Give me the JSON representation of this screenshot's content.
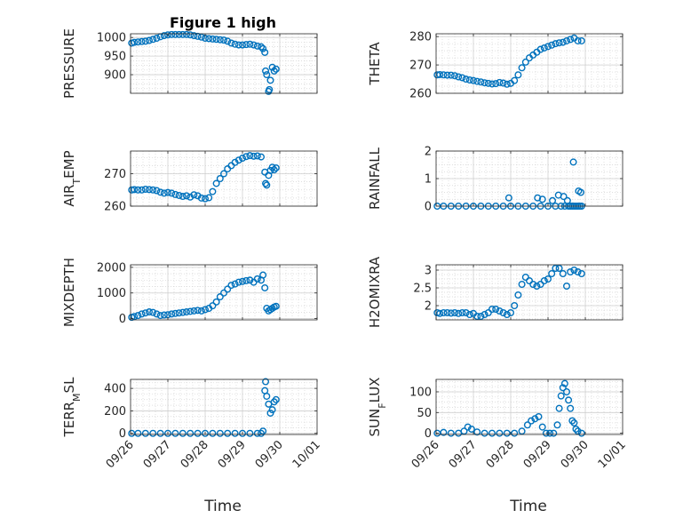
{
  "figure": {
    "title": "Figure 1 high",
    "x_ticks": [
      "09/26",
      "09/27",
      "09/28",
      "09/29",
      "09/30",
      "10/01"
    ],
    "xlabel": "Time",
    "marker_color": "#0072BD"
  },
  "chart_data": [
    {
      "type": "scatter",
      "ylabel": "PRESSURE",
      "ylim": [
        850,
        1010
      ],
      "yticks": [
        900,
        950,
        1000
      ],
      "xlim": [
        0,
        5
      ],
      "grid": true,
      "x": [
        0.03,
        0.1,
        0.2,
        0.3,
        0.4,
        0.5,
        0.6,
        0.7,
        0.8,
        0.9,
        1.0,
        1.1,
        1.2,
        1.3,
        1.4,
        1.5,
        1.6,
        1.7,
        1.8,
        1.9,
        2.0,
        2.1,
        2.2,
        2.3,
        2.4,
        2.5,
        2.6,
        2.7,
        2.8,
        2.9,
        3.0,
        3.1,
        3.2,
        3.3,
        3.4,
        3.5,
        3.55,
        3.6,
        3.62,
        3.65,
        3.7,
        3.72,
        3.75,
        3.8,
        3.85,
        3.9
      ],
      "y": [
        985,
        987,
        988,
        989,
        990,
        992,
        995,
        998,
        1002,
        1005,
        1007,
        1008,
        1008,
        1008,
        1008,
        1008,
        1007,
        1005,
        1003,
        1001,
        998,
        997,
        996,
        995,
        994,
        993,
        990,
        985,
        982,
        980,
        980,
        981,
        982,
        980,
        977,
        975,
        970,
        960,
        910,
        900,
        855,
        860,
        885,
        920,
        910,
        915
      ]
    },
    {
      "type": "scatter",
      "ylabel": "THETA",
      "ylim": [
        260,
        281
      ],
      "yticks": [
        260,
        270,
        280
      ],
      "xlim": [
        0,
        5
      ],
      "grid": true,
      "x": [
        0.03,
        0.1,
        0.2,
        0.3,
        0.4,
        0.5,
        0.6,
        0.7,
        0.8,
        0.9,
        1.0,
        1.1,
        1.2,
        1.3,
        1.4,
        1.5,
        1.6,
        1.7,
        1.8,
        1.9,
        2.0,
        2.1,
        2.2,
        2.3,
        2.4,
        2.5,
        2.6,
        2.7,
        2.8,
        2.9,
        3.0,
        3.1,
        3.2,
        3.3,
        3.4,
        3.5,
        3.6,
        3.7,
        3.8,
        3.9
      ],
      "y": [
        266.5,
        266.6,
        266.5,
        266.4,
        266.4,
        266.2,
        265.8,
        265.5,
        265,
        264.7,
        264.5,
        264.2,
        264,
        263.7,
        263.5,
        263.3,
        263.4,
        263.8,
        263.6,
        263.2,
        263.5,
        264.5,
        266.5,
        269,
        271,
        272.5,
        273.5,
        274.5,
        275.5,
        276,
        276.5,
        277,
        277.5,
        277.8,
        278,
        278.5,
        279,
        279.5,
        278.5,
        278.5
      ]
    },
    {
      "type": "scatter",
      "ylabel": "AIR_TEMP",
      "ylim": [
        260,
        277
      ],
      "yticks": [
        260,
        270
      ],
      "xlim": [
        0,
        5
      ],
      "grid": true,
      "x": [
        0.03,
        0.1,
        0.2,
        0.3,
        0.4,
        0.5,
        0.6,
        0.7,
        0.8,
        0.9,
        1.0,
        1.1,
        1.2,
        1.3,
        1.4,
        1.5,
        1.6,
        1.7,
        1.8,
        1.9,
        2.0,
        2.1,
        2.2,
        2.3,
        2.4,
        2.5,
        2.6,
        2.7,
        2.8,
        2.9,
        3.0,
        3.1,
        3.2,
        3.3,
        3.4,
        3.5,
        3.6,
        3.62,
        3.65,
        3.7,
        3.75,
        3.8,
        3.85,
        3.9
      ],
      "y": [
        265,
        265.1,
        265,
        265,
        265.2,
        265.1,
        265,
        264.8,
        264.3,
        264,
        264.2,
        264,
        263.6,
        263.3,
        263,
        263.2,
        262.8,
        263.5,
        263.2,
        262.5,
        262.3,
        262.6,
        264.5,
        267,
        268.5,
        270,
        271.5,
        272.5,
        273.5,
        274.2,
        274.8,
        275.3,
        275.6,
        275.4,
        275.5,
        275.2,
        270.5,
        267,
        266.5,
        269.5,
        271,
        272,
        271.2,
        271.8
      ]
    },
    {
      "type": "scatter",
      "ylabel": "RAINFALL",
      "ylim": [
        0,
        2
      ],
      "yticks": [
        0,
        1,
        2
      ],
      "xlim": [
        0,
        5
      ],
      "grid": true,
      "x": [
        0.03,
        0.2,
        0.4,
        0.6,
        0.8,
        1.0,
        1.2,
        1.4,
        1.6,
        1.8,
        2.0,
        2.2,
        2.4,
        2.6,
        2.8,
        3.0,
        3.2,
        3.35,
        3.45,
        3.55,
        3.6,
        3.65,
        3.7,
        3.75,
        3.8,
        3.85,
        3.9,
        1.95,
        2.72,
        2.85,
        3.12,
        3.28,
        3.42,
        3.52,
        3.68,
        3.82,
        3.88
      ],
      "y": [
        0,
        0,
        0,
        0,
        0,
        0,
        0,
        0,
        0,
        0,
        0,
        0,
        0,
        0,
        0,
        0,
        0,
        0,
        0,
        0,
        0,
        0,
        0,
        0,
        0,
        0,
        0,
        0.3,
        0.3,
        0.25,
        0.2,
        0.4,
        0.35,
        0.2,
        1.6,
        0.55,
        0.5
      ]
    },
    {
      "type": "scatter",
      "ylabel": "MIXDEPTH",
      "ylim": [
        -50,
        2100
      ],
      "yticks": [
        0,
        1000,
        2000
      ],
      "xlim": [
        0,
        5
      ],
      "grid": true,
      "x": [
        0.03,
        0.1,
        0.2,
        0.3,
        0.4,
        0.5,
        0.6,
        0.7,
        0.8,
        0.9,
        1.0,
        1.1,
        1.2,
        1.3,
        1.4,
        1.5,
        1.6,
        1.7,
        1.8,
        1.9,
        2.0,
        2.1,
        2.2,
        2.3,
        2.4,
        2.5,
        2.6,
        2.7,
        2.8,
        2.9,
        3.0,
        3.1,
        3.2,
        3.3,
        3.4,
        3.5,
        3.55,
        3.6,
        3.65,
        3.7,
        3.75,
        3.8,
        3.85,
        3.9
      ],
      "y": [
        50,
        80,
        120,
        180,
        220,
        260,
        240,
        180,
        120,
        140,
        150,
        180,
        200,
        220,
        240,
        260,
        280,
        300,
        320,
        300,
        350,
        400,
        500,
        650,
        850,
        1000,
        1150,
        1300,
        1350,
        1420,
        1450,
        1480,
        1500,
        1420,
        1550,
        1500,
        1700,
        1200,
        400,
        300,
        350,
        400,
        450,
        480
      ]
    },
    {
      "type": "scatter",
      "ylabel": "H2OMIXRA",
      "ylim": [
        1.6,
        3.15
      ],
      "yticks": [
        2,
        2.5,
        3
      ],
      "xlim": [
        0,
        5
      ],
      "grid": true,
      "x": [
        0.03,
        0.1,
        0.2,
        0.3,
        0.4,
        0.5,
        0.6,
        0.7,
        0.8,
        0.9,
        1.0,
        1.1,
        1.2,
        1.3,
        1.4,
        1.5,
        1.6,
        1.7,
        1.8,
        1.9,
        2.0,
        2.1,
        2.2,
        2.3,
        2.4,
        2.5,
        2.6,
        2.7,
        2.8,
        2.9,
        3.0,
        3.1,
        3.2,
        3.3,
        3.4,
        3.5,
        3.6,
        3.7,
        3.8,
        3.9
      ],
      "y": [
        1.8,
        1.78,
        1.8,
        1.8,
        1.79,
        1.8,
        1.78,
        1.8,
        1.8,
        1.75,
        1.78,
        1.7,
        1.7,
        1.75,
        1.8,
        1.9,
        1.9,
        1.85,
        1.8,
        1.75,
        1.8,
        2.0,
        2.3,
        2.6,
        2.8,
        2.7,
        2.6,
        2.55,
        2.6,
        2.7,
        2.75,
        2.9,
        3.05,
        3.05,
        2.9,
        2.55,
        2.95,
        3.0,
        2.95,
        2.9
      ]
    },
    {
      "type": "scatter",
      "ylabel": "TERR_MSL",
      "ylim": [
        -10,
        480
      ],
      "yticks": [
        0,
        200,
        400
      ],
      "xlim": [
        0,
        5
      ],
      "grid": true,
      "x": [
        0.03,
        0.2,
        0.4,
        0.6,
        0.8,
        1.0,
        1.2,
        1.4,
        1.6,
        1.8,
        2.0,
        2.2,
        2.4,
        2.6,
        2.8,
        3.0,
        3.2,
        3.4,
        3.5,
        3.55,
        3.6,
        3.62,
        3.65,
        3.7,
        3.75,
        3.8,
        3.85,
        3.9
      ],
      "y": [
        0,
        0,
        0,
        0,
        0,
        0,
        0,
        0,
        0,
        0,
        0,
        0,
        0,
        0,
        0,
        0,
        0,
        0,
        0,
        20,
        380,
        460,
        330,
        260,
        180,
        210,
        280,
        300
      ]
    },
    {
      "type": "scatter",
      "ylabel": "SUN_FLUX",
      "ylim": [
        -3,
        130
      ],
      "yticks": [
        0,
        50,
        100
      ],
      "xlim": [
        0,
        5
      ],
      "grid": true,
      "x": [
        0.03,
        0.2,
        0.4,
        0.6,
        0.75,
        0.85,
        0.95,
        1.1,
        1.3,
        1.5,
        1.7,
        1.9,
        2.1,
        2.3,
        2.45,
        2.55,
        2.65,
        2.75,
        2.85,
        2.95,
        3.05,
        3.15,
        3.25,
        3.3,
        3.35,
        3.4,
        3.45,
        3.5,
        3.55,
        3.6,
        3.65,
        3.7,
        3.75,
        3.8,
        3.9
      ],
      "y": [
        0,
        2,
        0,
        0,
        5,
        15,
        10,
        3,
        0,
        0,
        0,
        0,
        0,
        5,
        20,
        30,
        35,
        40,
        15,
        0,
        0,
        0,
        20,
        60,
        90,
        110,
        120,
        100,
        80,
        60,
        30,
        25,
        10,
        5,
        0
      ]
    }
  ]
}
